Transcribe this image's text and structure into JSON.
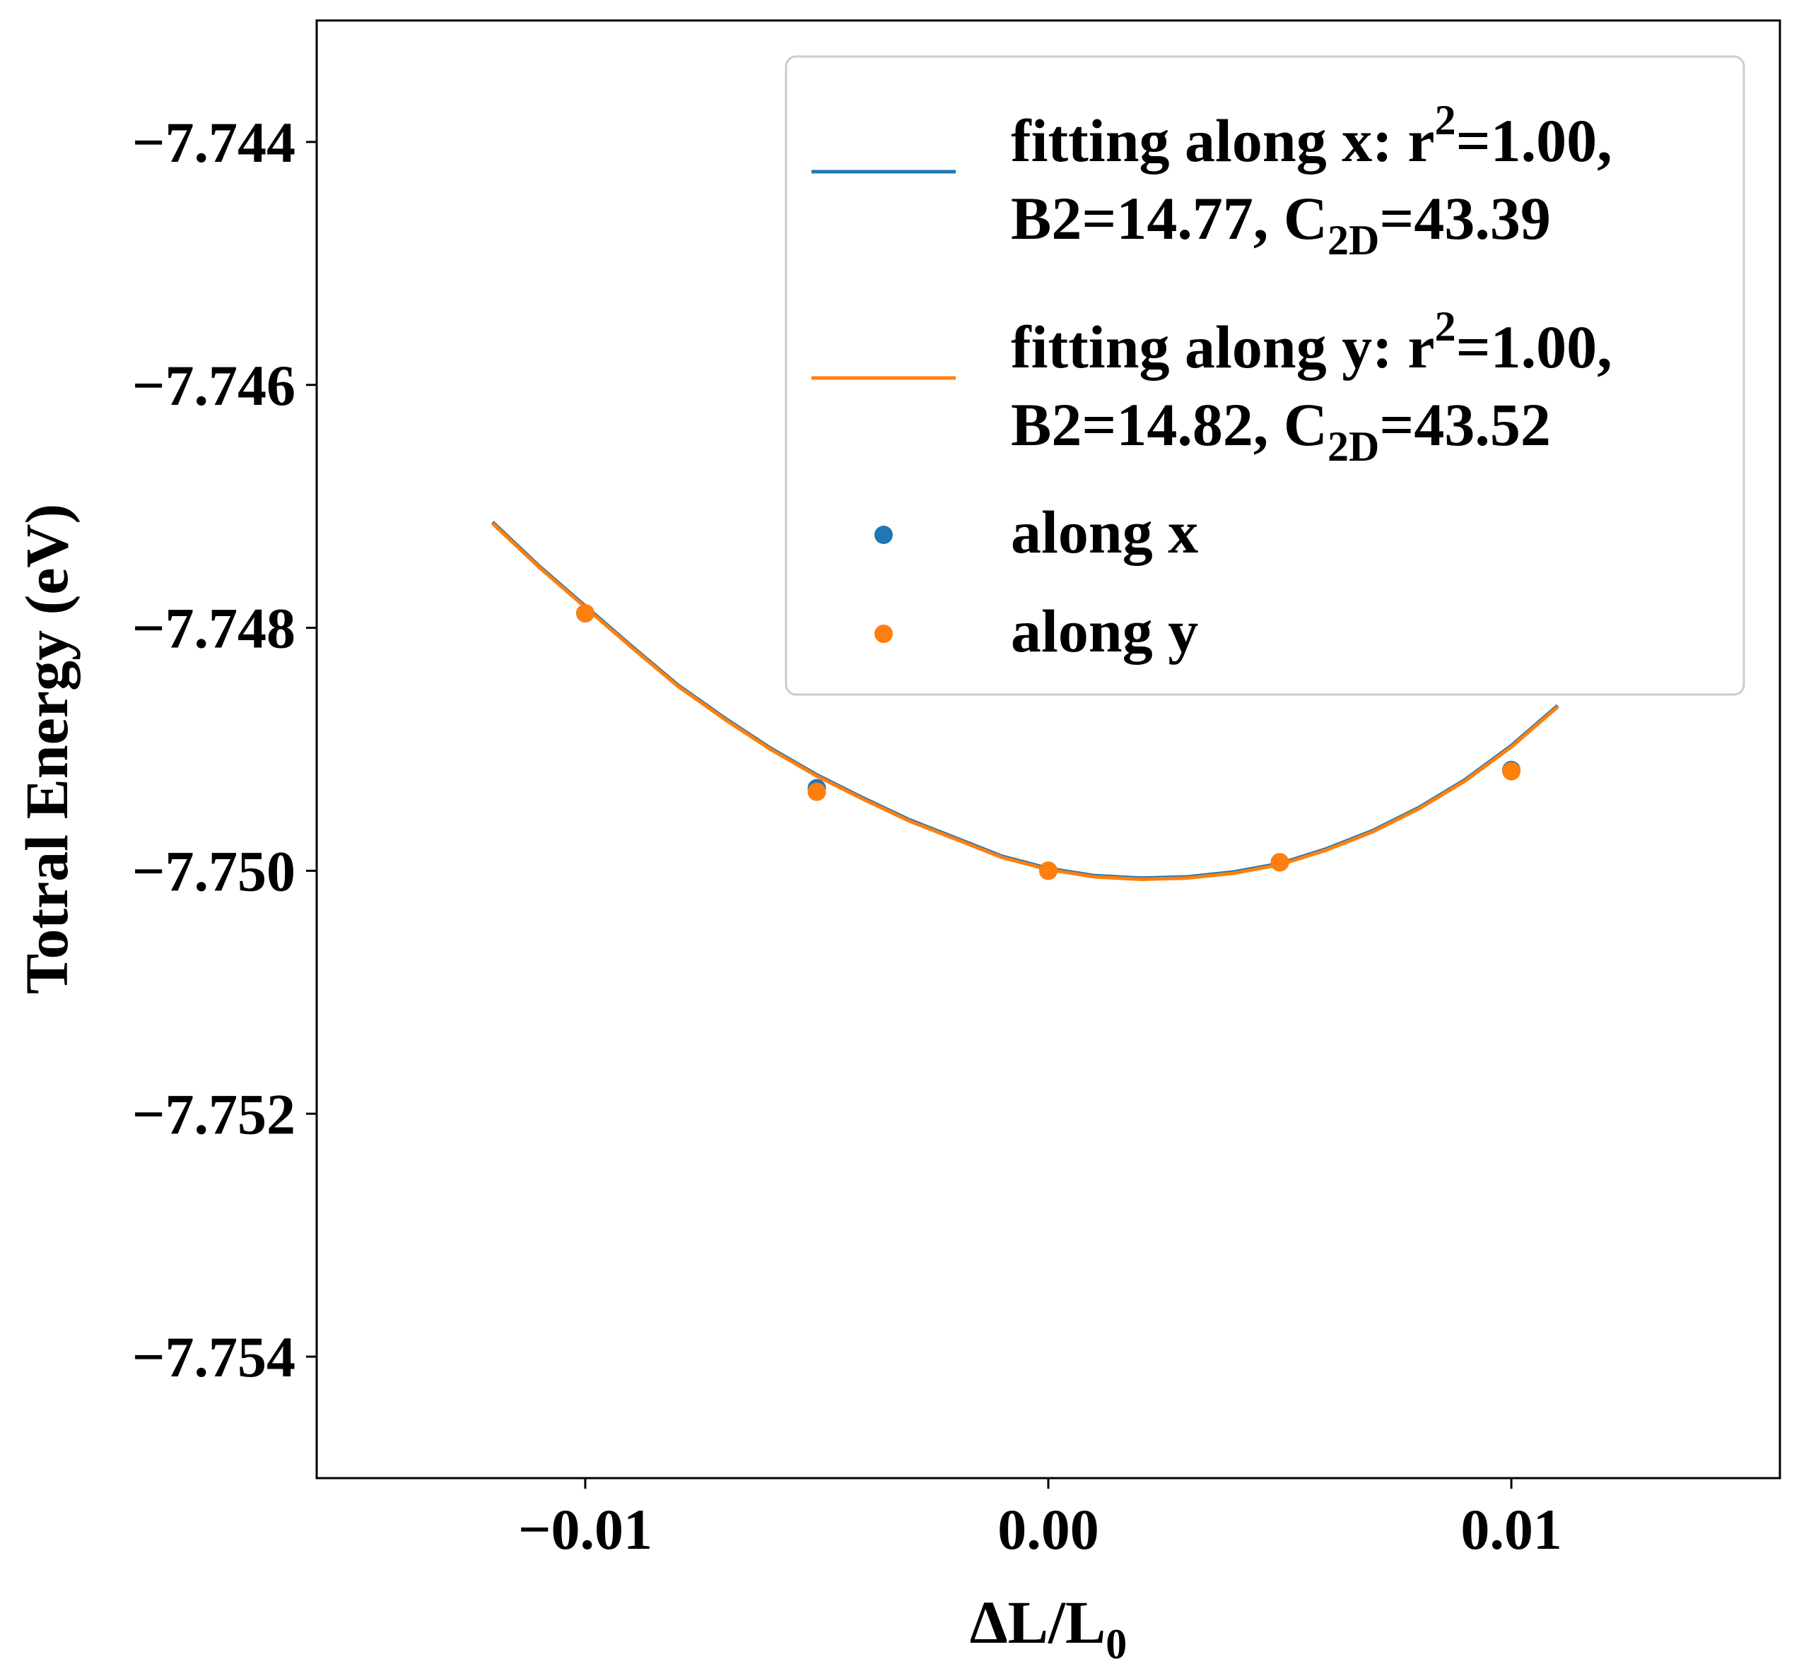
{
  "chart_data": {
    "type": "scatter",
    "title": "",
    "xlabel": "ΔL/L",
    "xlabel_subscript": "0",
    "ylabel": "Totral Energy (eV)",
    "xlim": [
      -0.0158,
      0.0158
    ],
    "ylim": [
      -7.755,
      -7.743
    ],
    "xticks": [
      -0.01,
      0.0,
      0.01
    ],
    "xtick_labels": [
      "−0.01",
      "0.00",
      "0.01"
    ],
    "yticks": [
      -7.754,
      -7.752,
      -7.75,
      -7.748,
      -7.746,
      -7.744
    ],
    "ytick_labels": [
      "−7.754",
      "−7.752",
      "−7.750",
      "−7.748",
      "−7.746",
      "−7.744"
    ],
    "grid": false,
    "legend_position": "top-right",
    "series": [
      {
        "type": "line",
        "color": "#1f77b4",
        "legend": {
          "line1_a": "fitting along x: r",
          "line1_sup": "2",
          "line1_b": "=1.00,",
          "line2_a": "B2=14.77, C",
          "line2_sub": "2D",
          "line2_b": "=43.39"
        },
        "x": [
          -0.012,
          -0.011,
          -0.01,
          -0.009,
          -0.008,
          -0.007,
          -0.006,
          -0.005,
          -0.004,
          -0.003,
          -0.002,
          -0.001,
          0.0,
          0.001,
          0.002,
          0.003,
          0.004,
          0.005,
          0.006,
          0.007,
          0.008,
          0.009,
          0.01,
          0.011
        ],
        "y": [
          -7.74713,
          -7.74749,
          -7.74782,
          -7.74815,
          -7.74847,
          -7.74874,
          -7.74899,
          -7.74921,
          -7.7494,
          -7.74958,
          -7.74973,
          -7.74988,
          -7.74998,
          -7.75004,
          -7.75006,
          -7.75005,
          -7.75001,
          -7.74994,
          -7.74982,
          -7.74967,
          -7.74948,
          -7.74925,
          -7.74897,
          -7.74864
        ]
      },
      {
        "type": "line",
        "color": "#ff7f0e",
        "legend": {
          "line1_a": "fitting along y: r",
          "line1_sup": "2",
          "line1_b": "=1.00,",
          "line2_a": "B2=14.82, C",
          "line2_sub": "2D",
          "line2_b": "=43.52"
        },
        "x": [
          -0.012,
          -0.011,
          -0.01,
          -0.009,
          -0.008,
          -0.007,
          -0.006,
          -0.005,
          -0.004,
          -0.003,
          -0.002,
          -0.001,
          0.0,
          0.001,
          0.002,
          0.003,
          0.004,
          0.005,
          0.006,
          0.007,
          0.008,
          0.009,
          0.01,
          0.011
        ],
        "y": [
          -7.74714,
          -7.7475,
          -7.74783,
          -7.74816,
          -7.74848,
          -7.74875,
          -7.749,
          -7.74922,
          -7.74941,
          -7.74959,
          -7.74974,
          -7.74989,
          -7.74999,
          -7.75005,
          -7.75007,
          -7.75006,
          -7.75002,
          -7.74995,
          -7.74983,
          -7.74968,
          -7.74949,
          -7.74926,
          -7.74898,
          -7.74865
        ]
      },
      {
        "type": "scatter",
        "color": "#1f77b4",
        "name": "along x",
        "x": [
          -0.01,
          -0.005,
          0.0,
          0.005,
          0.01
        ],
        "y": [
          -7.74788,
          -7.74932,
          -7.75,
          -7.74993,
          -7.74917
        ]
      },
      {
        "type": "scatter",
        "color": "#ff7f0e",
        "name": "along y",
        "x": [
          -0.01,
          -0.005,
          0.0,
          0.005,
          0.01
        ],
        "y": [
          -7.74788,
          -7.74935,
          -7.75,
          -7.74993,
          -7.74918
        ]
      }
    ]
  }
}
